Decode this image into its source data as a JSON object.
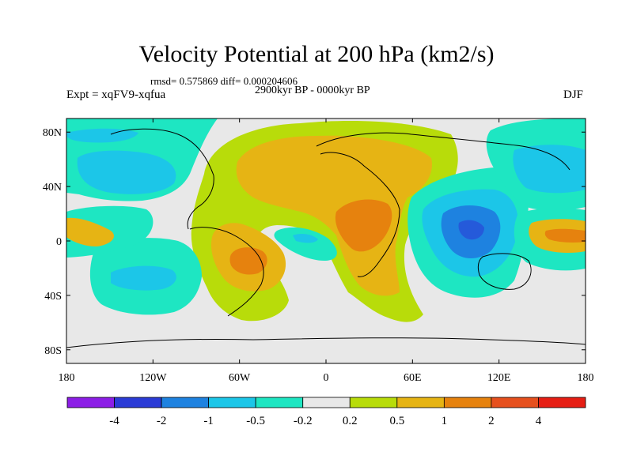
{
  "chart_data": {
    "type": "heatmap",
    "title": "Velocity Potential at 200 hPa (km2/s)",
    "stats_line": "rmsd= 0.575869 diff= 0.000204606",
    "period": "2900kyr BP - 0000kyr BP",
    "expt_label": "Expt = xqFV9-xqfua",
    "season": "DJF",
    "map_region": {
      "lon_range": [
        -180,
        180
      ],
      "lat_range": [
        -90,
        90
      ]
    },
    "y_ticks": [
      {
        "lat": 80,
        "label": "80N"
      },
      {
        "lat": 40,
        "label": "40N"
      },
      {
        "lat": 0,
        "label": "0"
      },
      {
        "lat": -40,
        "label": "40S"
      },
      {
        "lat": -80,
        "label": "80S"
      }
    ],
    "x_ticks": [
      {
        "lon": -180,
        "label": "180"
      },
      {
        "lon": -120,
        "label": "120W"
      },
      {
        "lon": -60,
        "label": "60W"
      },
      {
        "lon": 0,
        "label": "0"
      },
      {
        "lon": 60,
        "label": "60E"
      },
      {
        "lon": 120,
        "label": "120E"
      },
      {
        "lon": 180,
        "label": "180"
      }
    ],
    "colorbar": {
      "boundaries": [
        -4,
        -2,
        -1,
        -0.5,
        -0.2,
        0.2,
        0.5,
        1,
        2,
        4
      ],
      "labels": [
        "-4",
        "-2",
        "-1",
        "-0.5",
        "-0.2",
        "0.2",
        "0.5",
        "1",
        "2",
        "4"
      ],
      "colors": [
        "#8c1ee6",
        "#2b3bd6",
        "#1e82e0",
        "#1cc6e8",
        "#1ee6c2",
        "#e8e8e8",
        "#b8dc0a",
        "#e6b414",
        "#e6820e",
        "#e6501e",
        "#e61e14"
      ]
    },
    "features": [
      {
        "name": "N Pacific negative",
        "lon": -135,
        "lat": 35,
        "level": -1
      },
      {
        "name": "Atlantic-Africa positive",
        "lon": 10,
        "lat": 40,
        "level": 0.5
      },
      {
        "name": "E Africa maximum",
        "lon": 25,
        "lat": 0,
        "level": 2
      },
      {
        "name": "S America positive",
        "lon": -55,
        "lat": -15,
        "level": 2
      },
      {
        "name": "Maritime Continent minimum",
        "lon": 110,
        "lat": -5,
        "level": -2
      },
      {
        "name": "W Pacific positive",
        "lon": 165,
        "lat": -5,
        "level": 1
      }
    ]
  }
}
